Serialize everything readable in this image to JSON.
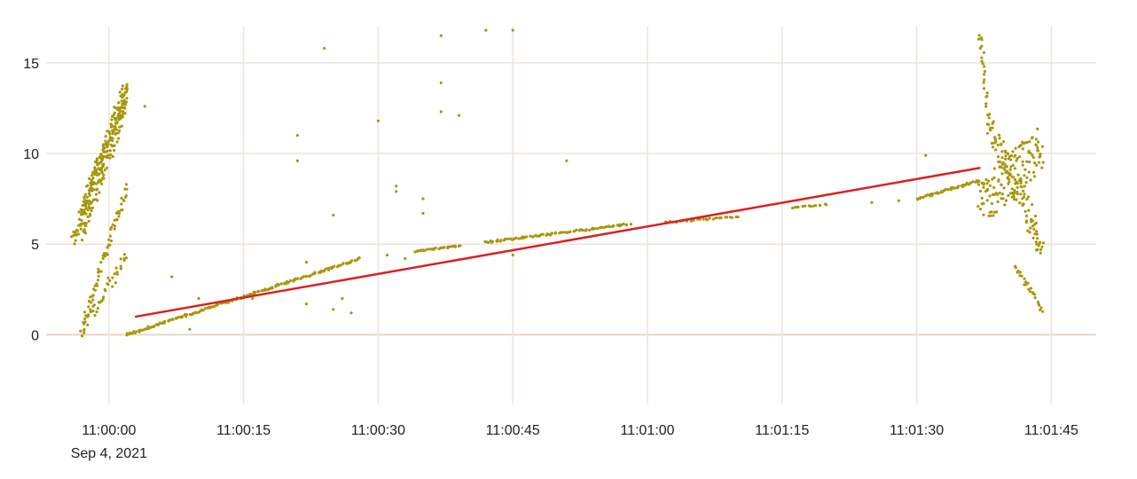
{
  "chart_data": {
    "type": "scatter",
    "title": "",
    "xlabel": "",
    "ylabel": "",
    "x_axis": {
      "type": "time",
      "range": [
        "2021-09-04T10:59:53",
        "2021-09-04T11:01:50"
      ],
      "ticks": [
        "11:00:00",
        "11:00:15",
        "11:00:30",
        "11:00:45",
        "11:01:00",
        "11:01:15",
        "11:01:30",
        "11:01:45"
      ],
      "date_label": "Sep 4, 2021"
    },
    "y_axis": {
      "range": [
        -3.8,
        17
      ],
      "ticks": [
        0,
        5,
        10,
        15
      ]
    },
    "grid": true,
    "legend": "none",
    "colors": {
      "points": "#a8970d",
      "trend": "#dd2020",
      "grid": "#eee3d9"
    },
    "series": [
      {
        "kind": "scatter",
        "description_points": "dense point cloud",
        "segments": [
          {
            "from": [
              "10:59:56",
              5.2
            ],
            "to": [
              "11:00:02",
              13.8
            ],
            "n": 120,
            "jitter": 0.6
          },
          {
            "from": [
              "10:59:57",
              5.6
            ],
            "to": [
              "11:00:02",
              12.6
            ],
            "n": 90,
            "jitter": 0.5
          },
          {
            "from": [
              "10:59:57",
              7.0
            ],
            "to": [
              "11:00:02",
              13.5
            ],
            "n": 80,
            "jitter": 0.5
          },
          {
            "from": [
              "10:59:57",
              0.3
            ],
            "to": [
              "11:00:02",
              8.2
            ],
            "n": 70,
            "jitter": 0.3
          },
          {
            "from": [
              "10:59:57",
              0.2
            ],
            "to": [
              "11:00:02",
              4.4
            ],
            "n": 40,
            "jitter": 0.4
          },
          {
            "from": [
              "11:00:02",
              0.0
            ],
            "to": [
              "11:00:28",
              4.2
            ],
            "n": 170,
            "jitter": 0.05
          },
          {
            "from": [
              "11:00:34",
              4.6
            ],
            "to": [
              "11:00:39",
              4.9
            ],
            "n": 30,
            "jitter": 0.03
          },
          {
            "from": [
              "11:00:42",
              5.1
            ],
            "to": [
              "11:00:58",
              6.1
            ],
            "n": 90,
            "jitter": 0.05
          },
          {
            "from": [
              "11:01:02",
              6.2
            ],
            "to": [
              "11:01:10",
              6.5
            ],
            "n": 30,
            "jitter": 0.04
          },
          {
            "from": [
              "11:01:16",
              7.0
            ],
            "to": [
              "11:01:20",
              7.2
            ],
            "n": 14,
            "jitter": 0.03
          },
          {
            "from": [
              "11:01:30",
              7.5
            ],
            "to": [
              "11:01:37",
              8.5
            ],
            "n": 50,
            "jitter": 0.05
          },
          {
            "from": [
              "11:01:37",
              7.0
            ],
            "to": [
              "11:01:44",
              10.5
            ],
            "n": 130,
            "jitter": 1.3
          },
          {
            "from": [
              "11:01:38",
              11.5
            ],
            "to": [
              "11:01:44",
              5.0
            ],
            "n": 110,
            "jitter": 0.9
          },
          {
            "from": [
              "11:01:37",
              16.8
            ],
            "to": [
              "11:01:38",
              12.0
            ],
            "n": 25,
            "jitter": 0.4
          },
          {
            "from": [
              "11:01:41",
              3.8
            ],
            "to": [
              "11:01:44",
              1.4
            ],
            "n": 25,
            "jitter": 0.15
          }
        ],
        "isolated_points": [
          [
            "11:00:04",
            12.6
          ],
          [
            "11:00:07",
            3.2
          ],
          [
            "11:00:09",
            0.3
          ],
          [
            "11:00:10",
            2.0
          ],
          [
            "11:00:16",
            2.0
          ],
          [
            "11:00:21",
            11.0
          ],
          [
            "11:00:21",
            9.6
          ],
          [
            "11:00:22",
            4.0
          ],
          [
            "11:00:22",
            1.7
          ],
          [
            "11:00:24",
            15.8
          ],
          [
            "11:00:25",
            6.6
          ],
          [
            "11:00:25",
            1.4
          ],
          [
            "11:00:26",
            2.0
          ],
          [
            "11:00:27",
            1.2
          ],
          [
            "11:00:30",
            11.8
          ],
          [
            "11:00:31",
            4.4
          ],
          [
            "11:00:32",
            8.2
          ],
          [
            "11:00:32",
            7.9
          ],
          [
            "11:00:33",
            4.2
          ],
          [
            "11:00:35",
            7.5
          ],
          [
            "11:00:35",
            6.7
          ],
          [
            "11:00:37",
            16.5
          ],
          [
            "11:00:37",
            13.9
          ],
          [
            "11:00:37",
            12.3
          ],
          [
            "11:00:39",
            12.1
          ],
          [
            "11:00:42",
            16.8
          ],
          [
            "11:00:45",
            16.8
          ],
          [
            "11:00:45",
            4.4
          ],
          [
            "11:00:51",
            9.6
          ],
          [
            "11:01:25",
            7.3
          ],
          [
            "11:01:28",
            7.4
          ],
          [
            "11:01:31",
            9.9
          ]
        ]
      },
      {
        "kind": "trend-line",
        "points": [
          [
            "11:00:03",
            1.0
          ],
          [
            "11:01:37",
            9.2
          ]
        ]
      }
    ]
  }
}
